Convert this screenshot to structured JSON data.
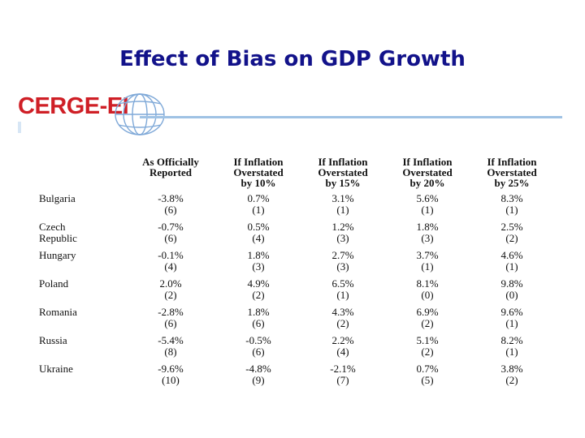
{
  "slide": {
    "title": "Effect of Bias on GDP Growth"
  },
  "logo": {
    "text": "CERGE-EI",
    "icon": "globe-icon",
    "brand_color": "#cf1f26",
    "line_color": "#9fc2e4"
  },
  "table": {
    "headers": [
      {
        "line1": "As Officially",
        "line2": "Reported",
        "line3": ""
      },
      {
        "line1": "If Inflation",
        "line2": "Overstated",
        "line3": "by 10%"
      },
      {
        "line1": "If Inflation",
        "line2": "Overstated",
        "line3": "by 15%"
      },
      {
        "line1": "If Inflation",
        "line2": "Overstated",
        "line3": "by 20%"
      },
      {
        "line1": "If Inflation",
        "line2": "Overstated",
        "line3": "by 25%"
      }
    ],
    "rows": [
      {
        "country_line1": "Bulgaria",
        "country_line2": "",
        "cells": [
          {
            "value": "-3.8%",
            "rank": "(6)"
          },
          {
            "value": "0.7%",
            "rank": "(1)"
          },
          {
            "value": "3.1%",
            "rank": "(1)"
          },
          {
            "value": "5.6%",
            "rank": "(1)"
          },
          {
            "value": "8.3%",
            "rank": "(1)"
          }
        ]
      },
      {
        "country_line1": "Czech",
        "country_line2": "Republic",
        "cells": [
          {
            "value": "-0.7%",
            "rank": "(6)"
          },
          {
            "value": "0.5%",
            "rank": "(4)"
          },
          {
            "value": "1.2%",
            "rank": "(3)"
          },
          {
            "value": "1.8%",
            "rank": "(3)"
          },
          {
            "value": "2.5%",
            "rank": "(2)"
          }
        ]
      },
      {
        "country_line1": "Hungary",
        "country_line2": "",
        "cells": [
          {
            "value": "-0.1%",
            "rank": "(4)"
          },
          {
            "value": "1.8%",
            "rank": "(3)"
          },
          {
            "value": "2.7%",
            "rank": "(3)"
          },
          {
            "value": "3.7%",
            "rank": "(1)"
          },
          {
            "value": "4.6%",
            "rank": "(1)"
          }
        ]
      },
      {
        "country_line1": "Poland",
        "country_line2": "",
        "cells": [
          {
            "value": "2.0%",
            "rank": "(2)"
          },
          {
            "value": "4.9%",
            "rank": "(2)"
          },
          {
            "value": "6.5%",
            "rank": "(1)"
          },
          {
            "value": "8.1%",
            "rank": "(0)"
          },
          {
            "value": "9.8%",
            "rank": "(0)"
          }
        ]
      },
      {
        "country_line1": "Romania",
        "country_line2": "",
        "cells": [
          {
            "value": "-2.8%",
            "rank": "(6)"
          },
          {
            "value": "1.8%",
            "rank": "(6)"
          },
          {
            "value": "4.3%",
            "rank": "(2)"
          },
          {
            "value": "6.9%",
            "rank": "(2)"
          },
          {
            "value": "9.6%",
            "rank": "(1)"
          }
        ]
      },
      {
        "country_line1": "Russia",
        "country_line2": "",
        "cells": [
          {
            "value": "-5.4%",
            "rank": "(8)"
          },
          {
            "value": "-0.5%",
            "rank": "(6)"
          },
          {
            "value": "2.2%",
            "rank": "(4)"
          },
          {
            "value": "5.1%",
            "rank": "(2)"
          },
          {
            "value": "8.2%",
            "rank": "(1)"
          }
        ]
      },
      {
        "country_line1": "Ukraine",
        "country_line2": "",
        "cells": [
          {
            "value": "-9.6%",
            "rank": "(10)"
          },
          {
            "value": "-4.8%",
            "rank": "(9)"
          },
          {
            "value": "-2.1%",
            "rank": "(7)"
          },
          {
            "value": "0.7%",
            "rank": "(5)"
          },
          {
            "value": "3.8%",
            "rank": "(2)"
          }
        ]
      }
    ]
  }
}
